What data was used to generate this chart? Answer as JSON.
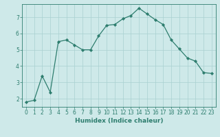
{
  "x": [
    0,
    1,
    2,
    3,
    4,
    5,
    6,
    7,
    8,
    9,
    10,
    11,
    12,
    13,
    14,
    15,
    16,
    17,
    18,
    19,
    20,
    21,
    22,
    23
  ],
  "y": [
    1.8,
    1.9,
    3.4,
    2.4,
    5.5,
    5.6,
    5.3,
    5.0,
    5.0,
    5.85,
    6.5,
    6.55,
    6.9,
    7.1,
    7.55,
    7.2,
    6.85,
    6.55,
    5.6,
    5.05,
    4.5,
    4.3,
    3.6,
    3.55
  ],
  "line_color": "#2d7d6e",
  "marker": "D",
  "marker_size": 2.2,
  "bg_color": "#cee9e9",
  "grid_color": "#a8d0d0",
  "xlabel": "Humidex (Indice chaleur)",
  "ylim": [
    1.5,
    7.8
  ],
  "xlim": [
    -0.5,
    23.5
  ],
  "yticks": [
    2,
    3,
    4,
    5,
    6,
    7
  ],
  "xticks": [
    0,
    1,
    2,
    3,
    4,
    5,
    6,
    7,
    8,
    9,
    10,
    11,
    12,
    13,
    14,
    15,
    16,
    17,
    18,
    19,
    20,
    21,
    22,
    23
  ],
  "label_fontsize": 6.5,
  "tick_fontsize": 5.5,
  "tick_color": "#2d7d6e",
  "axis_color": "#2d7d6e",
  "line_width": 0.9
}
